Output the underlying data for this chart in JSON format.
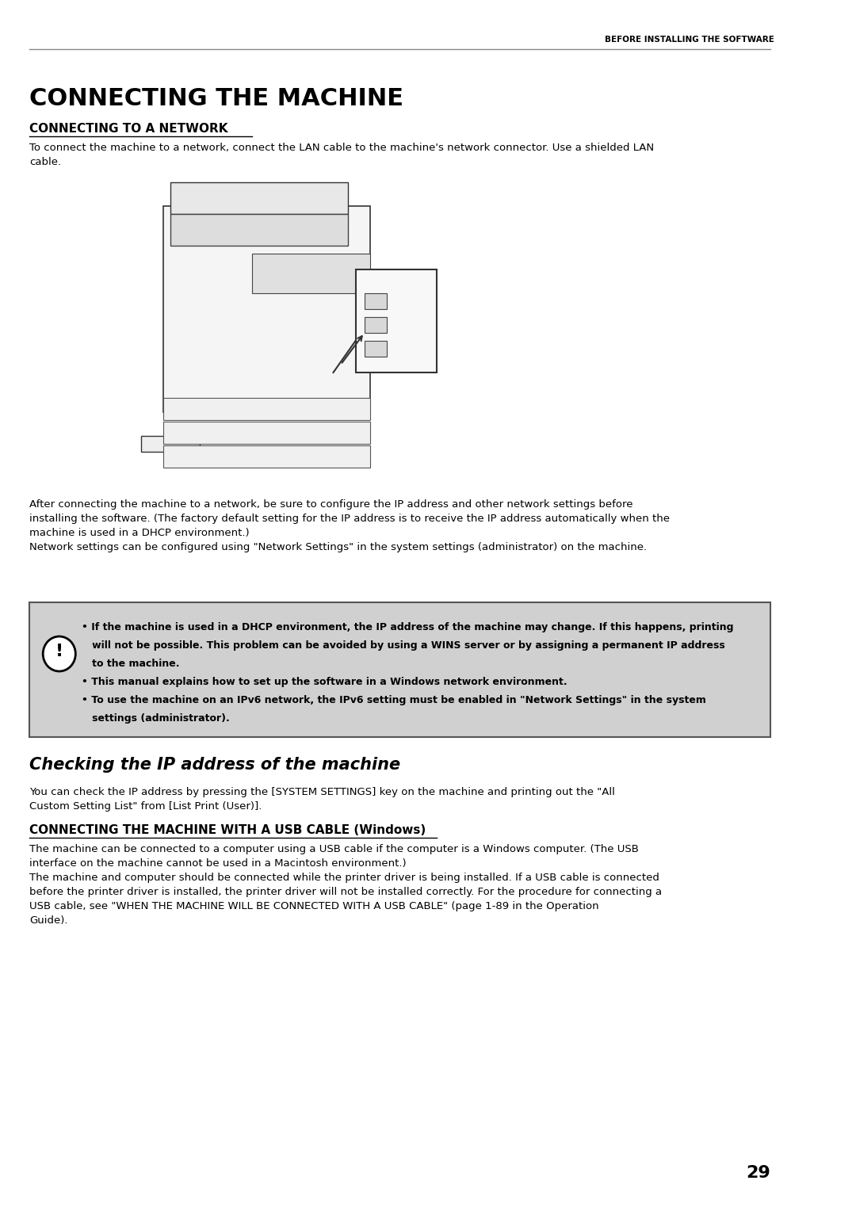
{
  "bg_color": "#ffffff",
  "header_text": "BEFORE INSTALLING THE SOFTWARE",
  "header_line_color": "#888888",
  "title": "CONNECTING THE MACHINE",
  "section1_title": "CONNECTING TO A NETWORK",
  "section1_body": "To connect the machine to a network, connect the LAN cable to the machine's network connector. Use a shielded LAN\ncable.",
  "after_image_text": "After connecting the machine to a network, be sure to configure the IP address and other network settings before\ninstalling the software. (The factory default setting for the IP address is to receive the IP address automatically when the\nmachine is used in a DHCP environment.)\nNetwork settings can be configured using \"Network Settings\" in the system settings (administrator) on the machine.",
  "warning_box_bg": "#d0d0d0",
  "warning_box_border": "#555555",
  "warning_bullets": [
    "• If the machine is used in a DHCP environment, the IP address of the machine may change. If this happens, printing\n   will not be possible. This problem can be avoided by using a WINS server or by assigning a permanent IP address\n   to the machine.",
    "• This manual explains how to set up the software in a Windows network environment.",
    "• To use the machine on an IPv6 network, the IPv6 setting must be enabled in \"Network Settings\" in the system\n   settings (administrator)."
  ],
  "section2_title": "Checking the IP address of the machine",
  "section2_body": "You can check the IP address by pressing the [SYSTEM SETTINGS] key on the machine and printing out the \"All\nCustom Setting List\" from [List Print (User)].",
  "section3_title": "CONNECTING THE MACHINE WITH A USB CABLE (Windows)",
  "section3_body": "The machine can be connected to a computer using a USB cable if the computer is a Windows computer. (The USB\ninterface on the machine cannot be used in a Macintosh environment.)\nThe machine and computer should be connected while the printer driver is being installed. If a USB cable is connected\nbefore the printer driver is installed, the printer driver will not be installed correctly. For the procedure for connecting a\nUSB cable, see \"WHEN THE MACHINE WILL BE CONNECTED WITH A USB CABLE\" (page 1-89 in the Operation\nGuide).",
  "page_number": "29",
  "title_fontsize": 22,
  "section_fontsize": 11,
  "body_fontsize": 9.5,
  "warning_fontsize": 9.0
}
